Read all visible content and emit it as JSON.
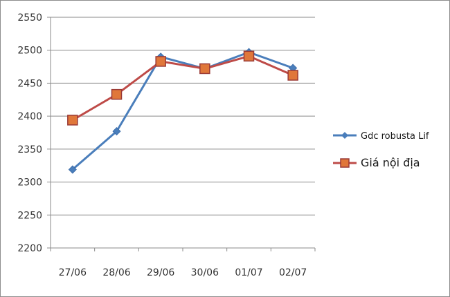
{
  "chart_data": {
    "type": "line",
    "title": "",
    "xlabel": "",
    "ylabel": "",
    "categories": [
      "27/06",
      "28/06",
      "29/06",
      "30/06",
      "01/07",
      "02/07"
    ],
    "ylim": [
      2200,
      2550
    ],
    "yticks": [
      2200,
      2250,
      2300,
      2350,
      2400,
      2450,
      2500,
      2550
    ],
    "yticklabels": [
      "2200",
      "2250",
      "2300",
      "2350",
      "2400",
      "2450",
      "2500",
      "2550"
    ],
    "grid": "horizontal",
    "legend": "right",
    "series": [
      {
        "name": "Gdc robusta Lif",
        "values": [
          2319,
          2377,
          2490,
          2472,
          2497,
          2473
        ],
        "color": "#4a7ebb",
        "marker": "diamond"
      },
      {
        "name": "Giá nội địa",
        "values": [
          2394,
          2433,
          2483,
          2472,
          2491,
          2462
        ],
        "color": "#be4b48",
        "marker": "square"
      }
    ]
  }
}
